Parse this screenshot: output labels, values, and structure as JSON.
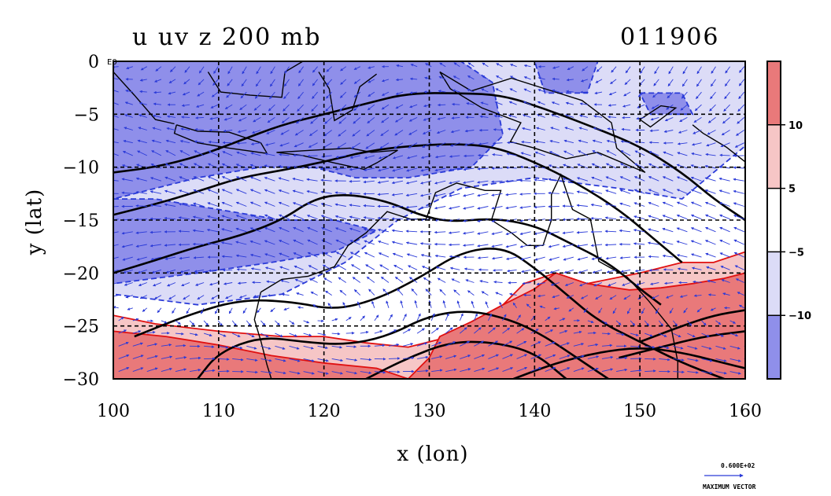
{
  "chart_data": {
    "type": "heatmap",
    "title": "u uv z 200 mb",
    "date_label": "011906",
    "xlabel": "x (lon)",
    "ylabel": "y (lat)",
    "xlim": [
      100,
      160
    ],
    "ylim": [
      -30,
      0
    ],
    "x_ticks": [
      "100",
      "110",
      "120",
      "130",
      "140",
      "150",
      "160"
    ],
    "y_ticks": [
      "0",
      "−5",
      "−10",
      "−15",
      "−20",
      "−25",
      "−30"
    ],
    "grid": true,
    "colorbar": {
      "position": "right",
      "labels": [
        "10",
        "5",
        "−5",
        "−10"
      ],
      "colors": [
        "#e9797a",
        "#f6c6c6",
        "#ffffff",
        "#dcdcf7",
        "#8f8fea"
      ]
    },
    "corner_label": "E0",
    "vector_reference": {
      "value": "0.600E+02",
      "label": "MAXIMUM VECTOR",
      "color": "#2a3ad8"
    },
    "colors": {
      "strong_negative": "#8f8fea",
      "weak_negative": "#dcdcf7",
      "weak_positive": "#f6c6c6",
      "strong_positive": "#e9797a",
      "negative_contour": "#2a3ad8",
      "positive_contour": "#e01010",
      "height_contour": "#000000"
    },
    "field_regions": [
      {
        "level": "weak_negative",
        "lon_lat": [
          [
            100,
            0
          ],
          [
            160,
            0
          ],
          [
            160,
            -8
          ],
          [
            154,
            -13
          ],
          [
            148,
            -12
          ],
          [
            140,
            -11
          ],
          [
            133,
            -12
          ],
          [
            127,
            -15
          ],
          [
            122,
            -19
          ],
          [
            116,
            -22
          ],
          [
            108,
            -23
          ],
          [
            100,
            -22
          ]
        ]
      },
      {
        "level": "strong_negative",
        "lon_lat": [
          [
            100,
            0
          ],
          [
            133,
            0
          ],
          [
            136,
            -2
          ],
          [
            137,
            -7
          ],
          [
            134,
            -10
          ],
          [
            128,
            -11
          ],
          [
            123,
            -11
          ],
          [
            119,
            -10
          ],
          [
            114,
            -10
          ],
          [
            108,
            -11
          ],
          [
            104,
            -12
          ],
          [
            100,
            -13
          ]
        ]
      },
      {
        "level": "strong_negative",
        "lon_lat": [
          [
            100,
            -13
          ],
          [
            104,
            -13
          ],
          [
            110,
            -14
          ],
          [
            116,
            -15
          ],
          [
            121,
            -15
          ],
          [
            125,
            -16
          ],
          [
            121,
            -18
          ],
          [
            115,
            -19
          ],
          [
            108,
            -20
          ],
          [
            100,
            -21
          ]
        ]
      },
      {
        "level": "strong_negative",
        "lon_lat": [
          [
            140,
            0
          ],
          [
            146,
            0
          ],
          [
            145,
            -3
          ],
          [
            141,
            -3
          ]
        ]
      },
      {
        "level": "strong_negative",
        "lon_lat": [
          [
            150,
            -3
          ],
          [
            154,
            -3
          ],
          [
            155,
            -5
          ],
          [
            151,
            -5
          ]
        ]
      },
      {
        "level": "weak_positive",
        "lon_lat": [
          [
            100,
            -24
          ],
          [
            104,
            -24.8
          ],
          [
            110,
            -25.5
          ],
          [
            116,
            -26
          ],
          [
            120,
            -26
          ],
          [
            124,
            -26.6
          ],
          [
            128,
            -27
          ],
          [
            132,
            -26
          ],
          [
            136,
            -24
          ],
          [
            139,
            -21
          ],
          [
            142,
            -20
          ],
          [
            145,
            -21
          ],
          [
            150,
            -20
          ],
          [
            154,
            -19
          ],
          [
            157,
            -19
          ],
          [
            160,
            -18
          ],
          [
            160,
            -30
          ],
          [
            100,
            -30
          ]
        ]
      },
      {
        "level": "strong_positive",
        "lon_lat": [
          [
            100,
            -25.5
          ],
          [
            105,
            -26
          ],
          [
            110,
            -26.8
          ],
          [
            115,
            -27.8
          ],
          [
            120,
            -28.5
          ],
          [
            125,
            -29
          ],
          [
            128,
            -30
          ],
          [
            100,
            -30
          ]
        ]
      },
      {
        "level": "strong_positive",
        "lon_lat": [
          [
            131,
            -26
          ],
          [
            134,
            -24.6
          ],
          [
            137,
            -23
          ],
          [
            140,
            -21.5
          ],
          [
            142,
            -20
          ],
          [
            145,
            -21
          ],
          [
            149,
            -21.6
          ],
          [
            152,
            -21.4
          ],
          [
            155,
            -21
          ],
          [
            158,
            -20.5
          ],
          [
            160,
            -20
          ],
          [
            160,
            -30
          ],
          [
            128,
            -30
          ],
          [
            130,
            -28
          ]
        ]
      }
    ],
    "height_contours": [
      [
        [
          100,
          -10.5
        ],
        [
          104,
          -10
        ],
        [
          108,
          -9
        ],
        [
          112,
          -7.5
        ],
        [
          116,
          -6
        ],
        [
          120,
          -5
        ],
        [
          124,
          -4
        ],
        [
          128,
          -3
        ],
        [
          133,
          -3
        ],
        [
          137,
          -3.2
        ],
        [
          141,
          -4.5
        ],
        [
          145,
          -6
        ],
        [
          150,
          -8
        ],
        [
          154,
          -10.5
        ],
        [
          157,
          -13
        ],
        [
          160,
          -15
        ]
      ],
      [
        [
          100,
          -14.5
        ],
        [
          104,
          -13.5
        ],
        [
          108,
          -12.3
        ],
        [
          112,
          -11
        ],
        [
          116,
          -10.3
        ],
        [
          120,
          -9.5
        ],
        [
          124,
          -8.5
        ],
        [
          128,
          -8
        ],
        [
          132,
          -7.8
        ],
        [
          136,
          -8
        ],
        [
          140,
          -9.5
        ],
        [
          144,
          -11.5
        ],
        [
          148,
          -14
        ],
        [
          151,
          -16.5
        ],
        [
          154,
          -19
        ]
      ],
      [
        [
          100,
          -20
        ],
        [
          104,
          -18.8
        ],
        [
          108,
          -17.5
        ],
        [
          112,
          -16.5
        ],
        [
          116,
          -15
        ],
        [
          119,
          -13
        ],
        [
          122,
          -12.5
        ],
        [
          126,
          -13.2
        ],
        [
          129,
          -14.5
        ],
        [
          132,
          -15.2
        ],
        [
          136,
          -14.8
        ],
        [
          140,
          -15.5
        ],
        [
          143,
          -17
        ],
        [
          147,
          -19
        ],
        [
          150,
          -21.5
        ],
        [
          152,
          -23
        ]
      ],
      [
        [
          102,
          -26
        ],
        [
          107,
          -24
        ],
        [
          112,
          -22.5
        ],
        [
          117,
          -22.7
        ],
        [
          121,
          -23.5
        ],
        [
          125,
          -22.5
        ],
        [
          129,
          -20.5
        ],
        [
          133,
          -18
        ],
        [
          137,
          -17.5
        ],
        [
          140,
          -19.5
        ],
        [
          143,
          -22
        ],
        [
          146,
          -24.5
        ],
        [
          150,
          -26.5
        ],
        [
          154,
          -28.5
        ],
        [
          158,
          -30
        ]
      ],
      [
        [
          108,
          -30
        ],
        [
          110,
          -27.5
        ],
        [
          114,
          -26
        ],
        [
          118,
          -26.5
        ],
        [
          122,
          -26.8
        ],
        [
          126,
          -26
        ],
        [
          130,
          -24
        ],
        [
          134,
          -23.5
        ],
        [
          138,
          -24.5
        ],
        [
          141,
          -26
        ],
        [
          144,
          -28
        ],
        [
          147,
          -30
        ]
      ],
      [
        [
          124,
          -30
        ],
        [
          128,
          -28
        ],
        [
          132,
          -26.5
        ],
        [
          136,
          -26.5
        ],
        [
          140,
          -27.5
        ],
        [
          143,
          -30
        ]
      ],
      [
        [
          138,
          -30
        ],
        [
          142,
          -28.5
        ],
        [
          146,
          -27.5
        ],
        [
          150,
          -27
        ],
        [
          154,
          -27.5
        ],
        [
          158,
          -28.5
        ],
        [
          160,
          -29
        ]
      ],
      [
        [
          148,
          -28
        ],
        [
          152,
          -27
        ],
        [
          156,
          -26
        ],
        [
          160,
          -25.5
        ]
      ],
      [
        [
          150,
          -26.5
        ],
        [
          154,
          -25
        ],
        [
          157,
          -24
        ],
        [
          160,
          -23.5
        ]
      ]
    ]
  }
}
